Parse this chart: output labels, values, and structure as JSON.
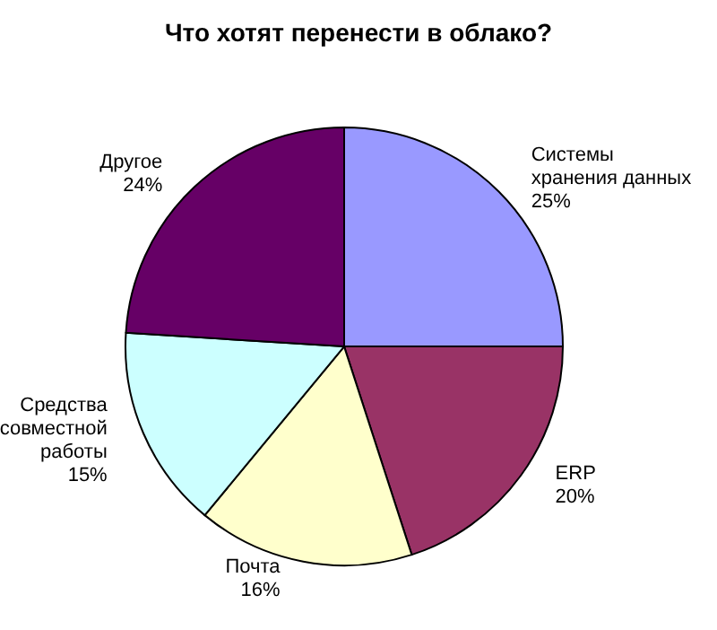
{
  "chart_data": {
    "type": "pie",
    "title": "Что хотят перенести в облако?",
    "categories": [
      "Системы хранения данных",
      "ERP",
      "Почта",
      "Средства совместной работы",
      "Другое"
    ],
    "values": [
      25,
      20,
      16,
      15,
      24
    ],
    "value_labels": [
      "25%",
      "20%",
      "16%",
      "15%",
      "24%"
    ],
    "colors": [
      "#9999ff",
      "#993366",
      "#ffffcc",
      "#ccffff",
      "#660066"
    ],
    "legend": false
  }
}
